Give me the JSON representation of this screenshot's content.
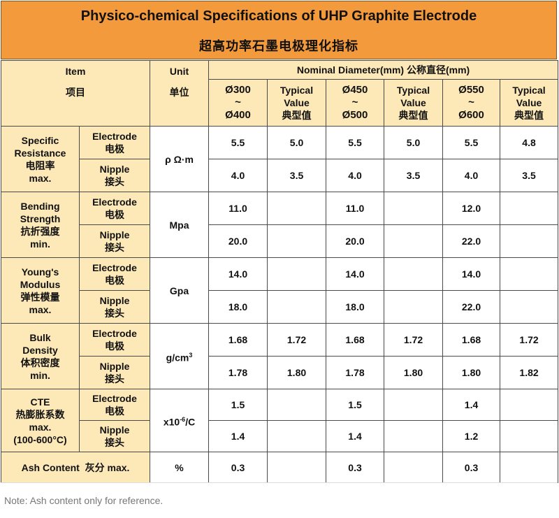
{
  "title": {
    "en": "Physico-chemical Specifications of UHP Graphite Electrode",
    "cn": "超高功率石墨电极理化指标"
  },
  "header": {
    "item_en": "Item",
    "item_cn": "项目",
    "unit_en": "Unit",
    "unit_cn": "单位",
    "diameter": "Nominal Diameter(mm) 公称直径(mm)",
    "cols": [
      {
        "l1": "Ø300",
        "l2": "~",
        "l3": "Ø400"
      },
      {
        "l1": "Typical",
        "l2": "Value",
        "l3": "典型值"
      },
      {
        "l1": "Ø450",
        "l2": "~",
        "l3": "Ø500"
      },
      {
        "l1": "Typical",
        "l2": "Value",
        "l3": "典型值"
      },
      {
        "l1": "Ø550",
        "l2": "~",
        "l3": "Ø600"
      },
      {
        "l1": "Typical",
        "l2": "Value",
        "l3": "典型值"
      }
    ]
  },
  "sub_labels": {
    "electrode_en": "Electrode",
    "electrode_cn": "电极",
    "nipple_en": "Nipple",
    "nipple_cn": "接头"
  },
  "rows": {
    "resistance": {
      "label": [
        "Specific",
        "Resistance",
        "电阻率",
        "max."
      ],
      "unit": "ρ Ω·m",
      "electrode": [
        "5.5",
        "5.0",
        "5.5",
        "5.0",
        "5.5",
        "4.8"
      ],
      "nipple": [
        "4.0",
        "3.5",
        "4.0",
        "3.5",
        "4.0",
        "3.5"
      ]
    },
    "bending": {
      "label": [
        "Bending",
        "Strength",
        "抗折强度",
        "min."
      ],
      "unit": "Mpa",
      "electrode": [
        "11.0",
        "",
        "11.0",
        "",
        "12.0",
        ""
      ],
      "nipple": [
        "20.0",
        "",
        "20.0",
        "",
        "22.0",
        ""
      ]
    },
    "young": {
      "label": [
        "Young's",
        "Modulus",
        "弹性模量",
        "max."
      ],
      "unit": "Gpa",
      "electrode": [
        "14.0",
        "",
        "14.0",
        "",
        "14.0",
        ""
      ],
      "nipple": [
        "18.0",
        "",
        "18.0",
        "",
        "22.0",
        ""
      ]
    },
    "bulk": {
      "label": [
        "Bulk",
        "Density",
        "体积密度",
        "min."
      ],
      "unit_base": "g/cm",
      "unit_sup": "3",
      "electrode": [
        "1.68",
        "1.72",
        "1.68",
        "1.72",
        "1.68",
        "1.72"
      ],
      "nipple": [
        "1.78",
        "1.80",
        "1.78",
        "1.80",
        "1.80",
        "1.82"
      ]
    },
    "cte": {
      "label": [
        "CTE",
        "热膨胀系数",
        "max.",
        "(100-600°C)"
      ],
      "unit_base": "x10",
      "unit_sup": "-6",
      "unit_tail": "/C",
      "electrode": [
        "1.5",
        "",
        "1.5",
        "",
        "1.4",
        ""
      ],
      "nipple": [
        "1.4",
        "",
        "1.4",
        "",
        "1.2",
        ""
      ]
    },
    "ash": {
      "label": "Ash Content  灰分 max.",
      "unit": "%",
      "values": [
        "0.3",
        "",
        "0.3",
        "",
        "0.3",
        ""
      ]
    }
  },
  "note": "Note: Ash content only for reference.",
  "colors": {
    "title_bg": "#f39a3c",
    "header_bg": "#fde9b8",
    "border": "#4a4a4a"
  }
}
